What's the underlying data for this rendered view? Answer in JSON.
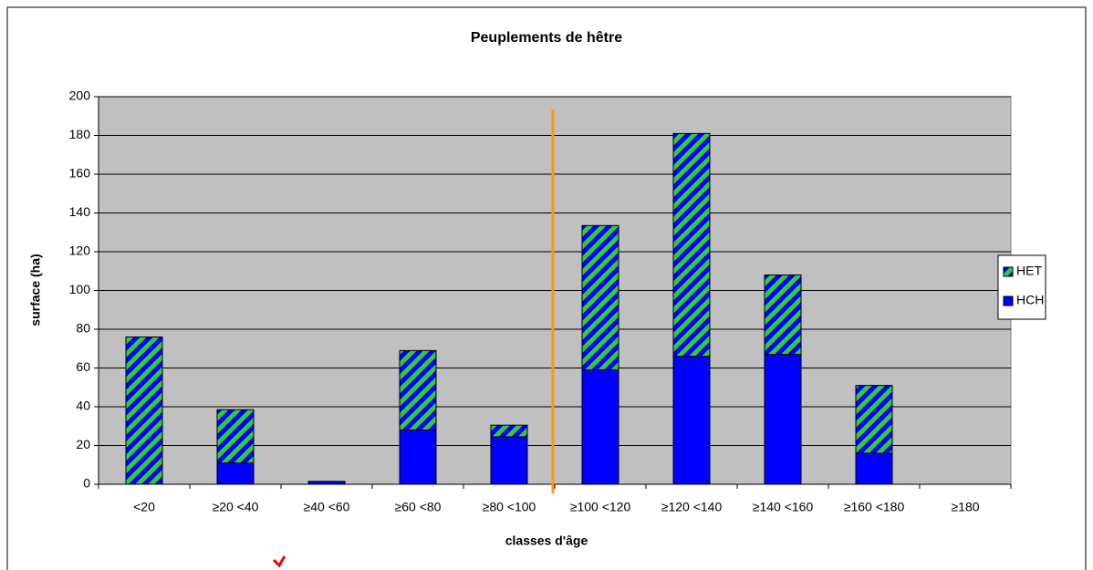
{
  "chart_data": {
    "type": "stacked_bar",
    "title": "Peuplements de hêtre",
    "xlabel": "classes d'âge",
    "ylabel": "surface (ha)",
    "categories": [
      "<20",
      "≥20 <40",
      "≥40 <60",
      "≥60 <80",
      "≥80 <100",
      "≥100 <120",
      "≥120 <140",
      "≥140 <160",
      "≥160 <180",
      "≥180"
    ],
    "series": [
      {
        "name": "HCH",
        "color": "#0000ff",
        "values": [
          0,
          11,
          1.5,
          28,
          24.5,
          59,
          66,
          67,
          16,
          0
        ]
      },
      {
        "name": "HET",
        "color": "#33cc33",
        "hatch_color": "#0000ff",
        "values": [
          76,
          27.5,
          0,
          41,
          6,
          74.5,
          115,
          41,
          35,
          0
        ]
      }
    ],
    "ylim": [
      0,
      200
    ],
    "yticks": [
      0,
      20,
      40,
      60,
      80,
      100,
      120,
      140,
      160,
      180,
      200
    ],
    "grid": true,
    "legend": "right"
  }
}
